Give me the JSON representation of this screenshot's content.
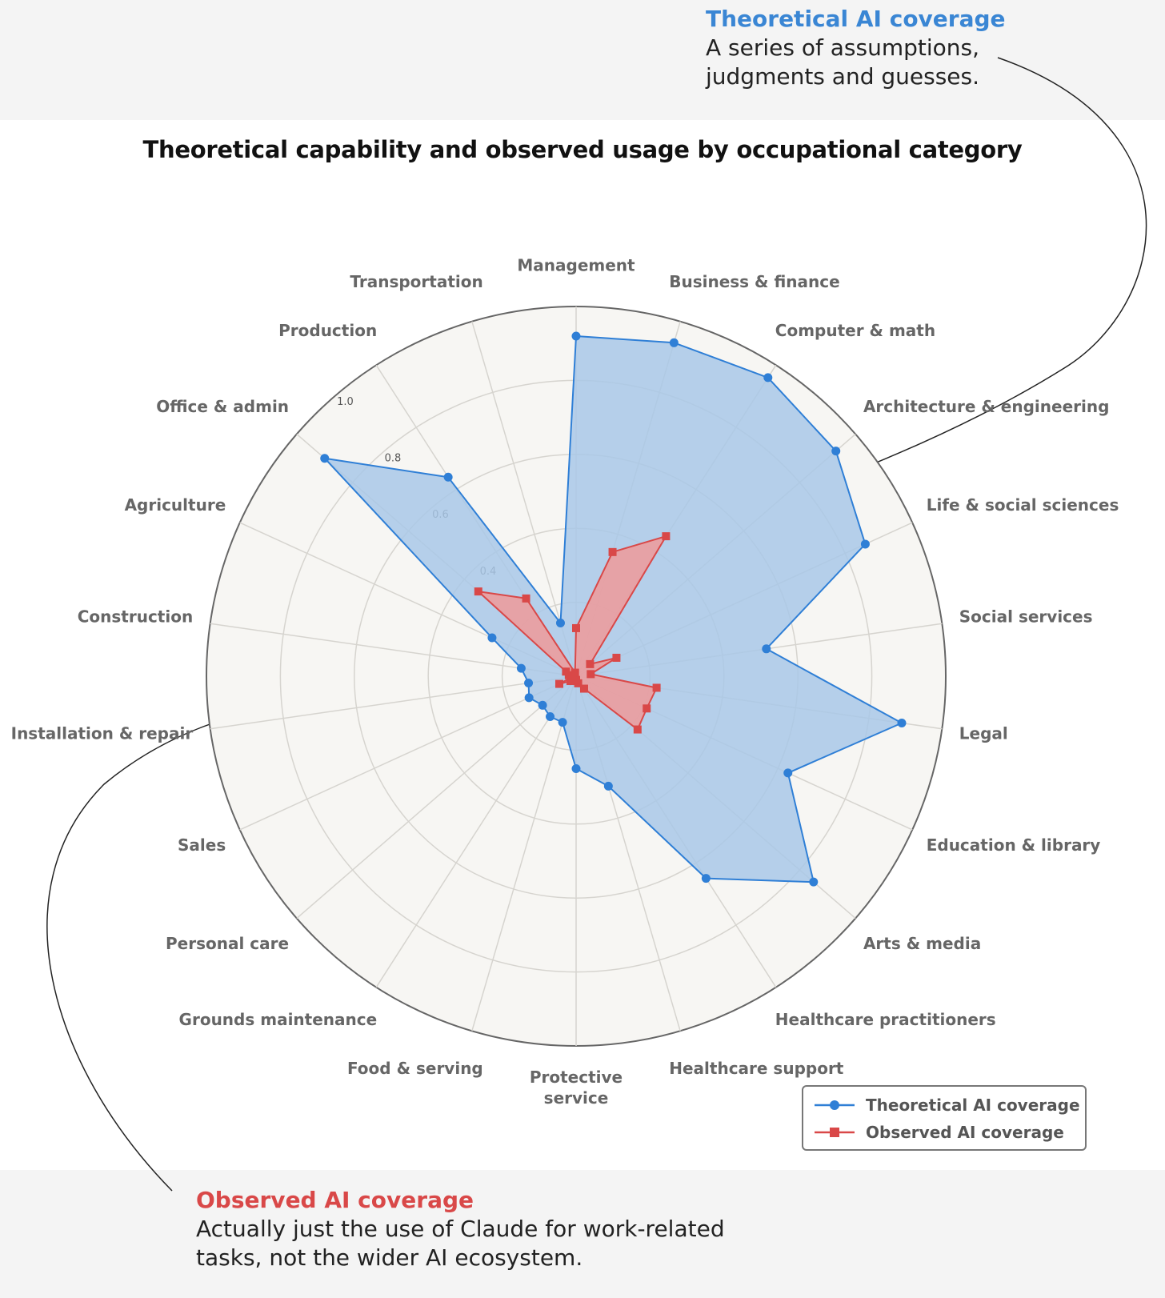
{
  "annotations": {
    "top": {
      "title": "Theoretical AI coverage",
      "body": "A series of assumptions, judgments and guesses."
    },
    "bottom": {
      "title": "Observed AI coverage",
      "body": "Actually just the use of Claude for work-related tasks, not the wider AI ecosystem."
    }
  },
  "chart_data": {
    "type": "radar",
    "title": "Theoretical capability and observed usage by occupational category",
    "categories": [
      "Management",
      "Business & finance",
      "Computer & math",
      "Architecture & engineering",
      "Life & social sciences",
      "Social services",
      "Legal",
      "Education & library",
      "Arts & media",
      "Healthcare practitioners",
      "Healthcare support",
      "Protective service",
      "Food & serving",
      "Grounds maintenance",
      "Personal care",
      "Sales",
      "Installation & repair",
      "Construction",
      "Agriculture",
      "Office & admin",
      "Production",
      "Transportation"
    ],
    "category_order_note": "clockwise from top",
    "r_ticks": [
      "0.4",
      "0.6",
      "0.8",
      "1.0"
    ],
    "r_range": [
      0,
      1
    ],
    "series": [
      {
        "name": "Theoretical AI coverage",
        "color": "#2f7fd6",
        "fill": "#a9c8e8",
        "marker": "circle",
        "values": [
          0.92,
          0.94,
          0.96,
          0.93,
          0.86,
          0.52,
          0.89,
          0.63,
          0.85,
          0.65,
          0.31,
          0.25,
          0.13,
          0.13,
          0.12,
          0.14,
          0.13,
          0.15,
          0.25,
          0.9,
          0.64,
          0.15
        ]
      },
      {
        "name": "Observed AI coverage",
        "color": "#d94848",
        "fill": "#ee9a9a",
        "marker": "square",
        "values": [
          0.13,
          0.35,
          0.45,
          0.05,
          0.12,
          0.04,
          0.22,
          0.21,
          0.22,
          0.04,
          0.02,
          0.01,
          0.01,
          0.01,
          0.02,
          0.05,
          0.01,
          0.02,
          0.03,
          0.35,
          0.25,
          0.01
        ]
      }
    ],
    "legend": "bottom-right",
    "grid": true
  },
  "legend": {
    "theoretical": "Theoretical AI coverage",
    "observed": "Observed AI coverage"
  }
}
